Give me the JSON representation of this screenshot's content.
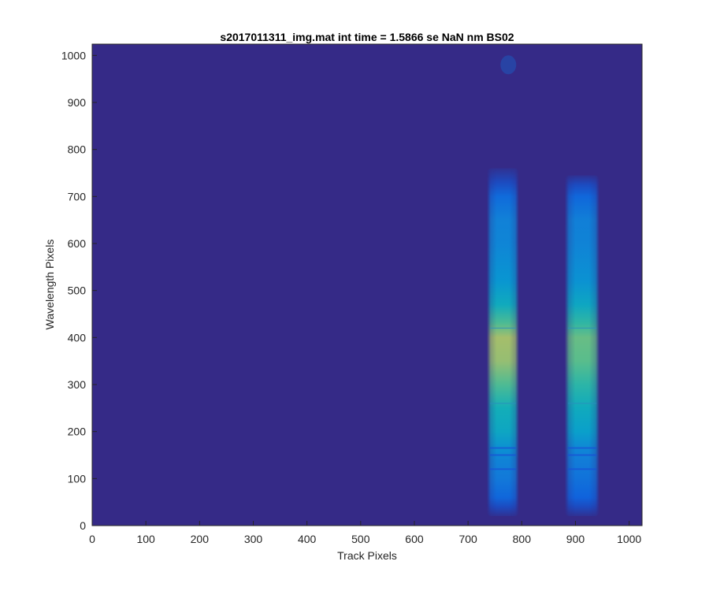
{
  "chart_data": {
    "type": "heatmap",
    "title": "s2017011311_img.mat int time = 1.5866 se  NaN nm BS02",
    "xlabel": "Track Pixels",
    "ylabel": "Wavelength Pixels",
    "xlim": [
      0,
      1024
    ],
    "ylim": [
      0,
      1024
    ],
    "xticks": [
      0,
      100,
      200,
      300,
      400,
      500,
      600,
      700,
      800,
      900,
      1000
    ],
    "yticks": [
      0,
      100,
      200,
      300,
      400,
      500,
      600,
      700,
      800,
      900,
      1000
    ],
    "grid": false,
    "colormap": "parula",
    "background_color": "#352a87",
    "tracks": [
      {
        "x_range": [
          735,
          795
        ],
        "y_range": [
          20,
          760
        ],
        "profile": [
          {
            "y": 20,
            "level": 0.02
          },
          {
            "y": 40,
            "level": 0.1
          },
          {
            "y": 60,
            "level": 0.2
          },
          {
            "y": 100,
            "level": 0.28
          },
          {
            "y": 140,
            "level": 0.33
          },
          {
            "y": 160,
            "level": 0.38
          },
          {
            "y": 200,
            "level": 0.52
          },
          {
            "y": 250,
            "level": 0.58
          },
          {
            "y": 300,
            "level": 0.7
          },
          {
            "y": 350,
            "level": 0.8
          },
          {
            "y": 400,
            "level": 0.82
          },
          {
            "y": 430,
            "level": 0.7
          },
          {
            "y": 470,
            "level": 0.55
          },
          {
            "y": 520,
            "level": 0.42
          },
          {
            "y": 600,
            "level": 0.34
          },
          {
            "y": 650,
            "level": 0.32
          },
          {
            "y": 700,
            "level": 0.22
          },
          {
            "y": 730,
            "level": 0.1
          },
          {
            "y": 760,
            "level": 0.02
          }
        ]
      },
      {
        "x_range": [
          880,
          945
        ],
        "y_range": [
          20,
          745
        ],
        "profile": [
          {
            "y": 20,
            "level": 0.02
          },
          {
            "y": 40,
            "level": 0.1
          },
          {
            "y": 60,
            "level": 0.18
          },
          {
            "y": 100,
            "level": 0.25
          },
          {
            "y": 140,
            "level": 0.3
          },
          {
            "y": 160,
            "level": 0.34
          },
          {
            "y": 200,
            "level": 0.48
          },
          {
            "y": 250,
            "level": 0.55
          },
          {
            "y": 300,
            "level": 0.64
          },
          {
            "y": 350,
            "level": 0.72
          },
          {
            "y": 400,
            "level": 0.74
          },
          {
            "y": 430,
            "level": 0.65
          },
          {
            "y": 470,
            "level": 0.52
          },
          {
            "y": 520,
            "level": 0.4
          },
          {
            "y": 600,
            "level": 0.33
          },
          {
            "y": 650,
            "level": 0.31
          },
          {
            "y": 700,
            "level": 0.2
          },
          {
            "y": 725,
            "level": 0.1
          },
          {
            "y": 745,
            "level": 0.02
          }
        ]
      }
    ],
    "faint_spots": [
      {
        "x": 775,
        "y": 980,
        "level": 0.04
      }
    ]
  }
}
